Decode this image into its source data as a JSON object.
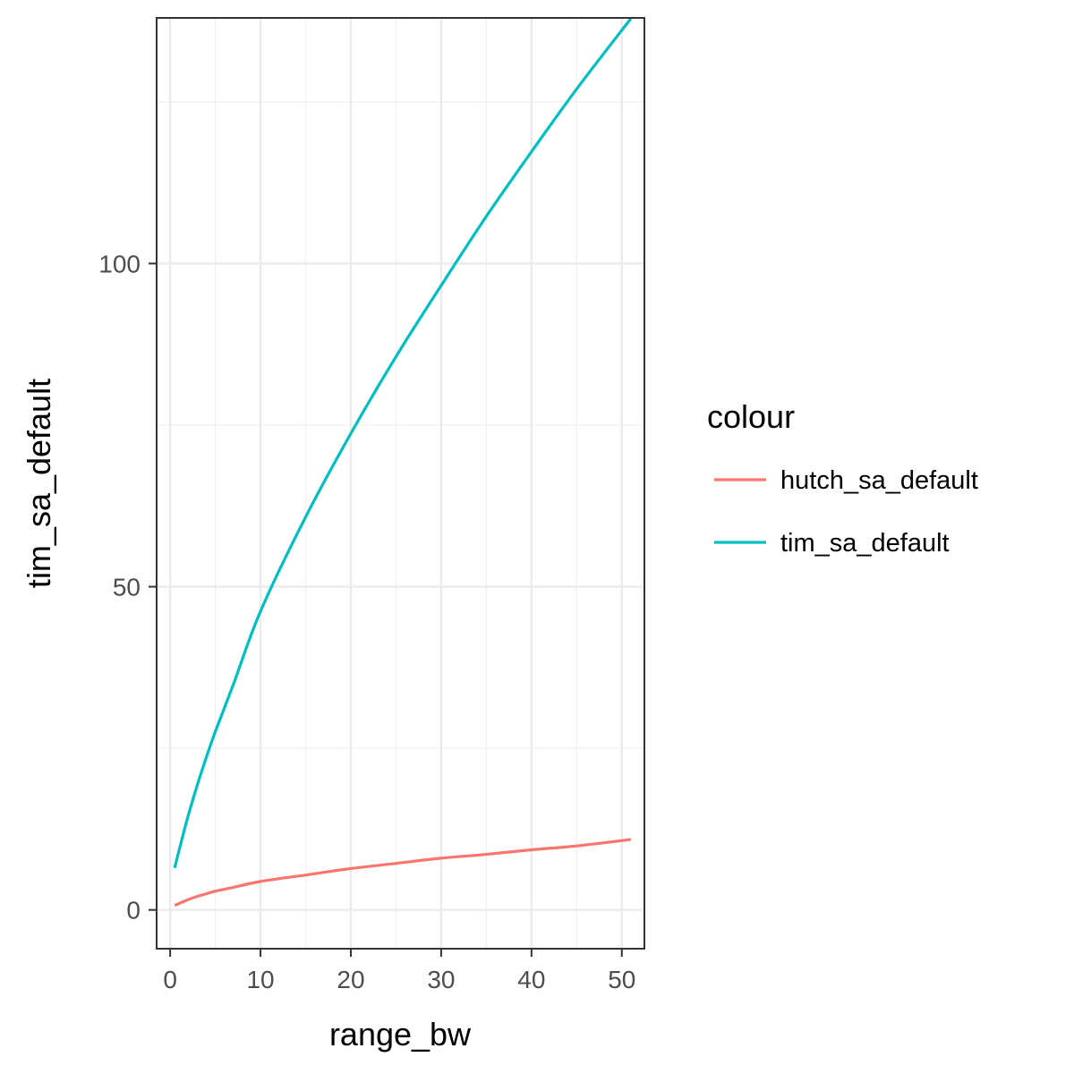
{
  "chart_data": {
    "type": "line",
    "title": "",
    "xlabel": "range_bw",
    "ylabel": "tim_sa_default",
    "xlim": [
      -1.5,
      52.5
    ],
    "ylim": [
      -6,
      138
    ],
    "x_ticks": [
      0,
      10,
      20,
      30,
      40,
      50
    ],
    "x_tick_labels": [
      "0",
      "10",
      "20",
      "30",
      "40",
      "50"
    ],
    "y_ticks": [
      0,
      50,
      100
    ],
    "y_tick_labels": [
      "0",
      "50",
      "100"
    ],
    "grid": true,
    "legend": {
      "title": "colour",
      "position": "right"
    },
    "series": [
      {
        "name": "hutch_sa_default",
        "color": "#F8766D",
        "x": [
          0.5,
          1,
          2,
          3,
          4,
          5,
          7,
          10,
          15,
          20,
          25,
          30,
          35,
          40,
          45,
          51
        ],
        "y": [
          0.7,
          1.0,
          1.6,
          2.1,
          2.5,
          2.9,
          3.5,
          4.4,
          5.4,
          6.4,
          7.2,
          8.0,
          8.6,
          9.3,
          9.9,
          10.9
        ]
      },
      {
        "name": "tim_sa_default",
        "color": "#00BFC4",
        "x": [
          0.5,
          1,
          2,
          3,
          4,
          5,
          7,
          10,
          15,
          20,
          25,
          30,
          35,
          40,
          45,
          51
        ],
        "y": [
          6.5,
          9.3,
          14.6,
          19.3,
          23.6,
          27.6,
          34.9,
          46.2,
          60.8,
          73.7,
          85.6,
          96.6,
          107.3,
          117.3,
          127.0,
          137.9
        ]
      }
    ]
  }
}
